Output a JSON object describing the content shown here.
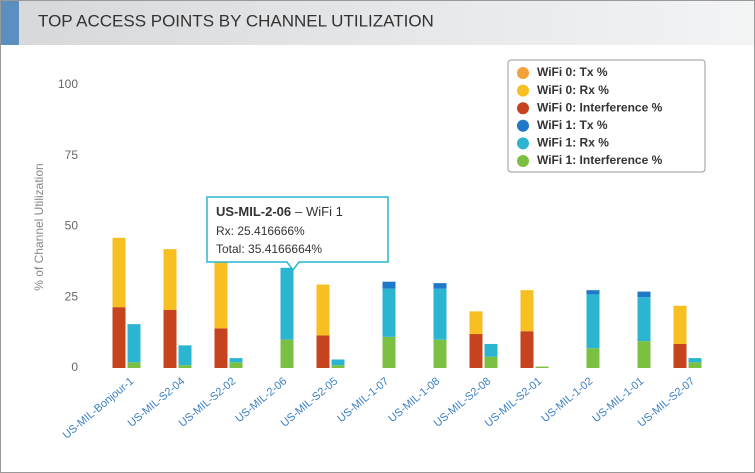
{
  "chart_data": {
    "type": "stacked_bar",
    "title": "TOP ACCESS POINTS BY CHANNEL UTILIZATION",
    "ylabel": "% of Channel Utilization",
    "categories": [
      "US-MIL-Bonjour-1",
      "US-MIL-S2-04",
      "US-MIL-S2-02",
      "US-MIL-2-06",
      "US-MIL-S2-05",
      "US-MIL-1-07",
      "US-MIL-1-08",
      "US-MIL-S2-08",
      "US-MIL-S2-01",
      "US-MIL-1-02",
      "US-MIL-1-01",
      "US-MIL-S2-07"
    ],
    "series": [
      {
        "name": "WiFi 0: Tx %",
        "stack": 0,
        "color": "#f2a03a",
        "values": [
          0,
          0,
          0,
          0,
          0,
          0,
          0,
          0,
          0,
          0,
          0,
          0
        ]
      },
      {
        "name": "WiFi 0: Rx %",
        "stack": 0,
        "color": "#f7bf22",
        "values": [
          24.5,
          21.5,
          26,
          0,
          18,
          0,
          0,
          8,
          14.5,
          0,
          0,
          13.5
        ]
      },
      {
        "name": "WiFi 0: Interference %",
        "stack": 0,
        "color": "#c5431f",
        "values": [
          21.5,
          20.5,
          14,
          0,
          11.5,
          0,
          0,
          12,
          13,
          0,
          0,
          8.5
        ]
      },
      {
        "name": "WiFi 1: Tx %",
        "stack": 1,
        "color": "#1f78c8",
        "values": [
          0,
          0,
          0,
          0,
          0,
          2.5,
          2,
          0,
          0,
          1.5,
          2,
          0
        ]
      },
      {
        "name": "WiFi 1: Rx %",
        "stack": 1,
        "color": "#2bb5d0",
        "values": [
          13.5,
          7,
          1.5,
          25.416666,
          2,
          17,
          18,
          4.5,
          0,
          19,
          15.5,
          1.5
        ]
      },
      {
        "name": "WiFi 1: Interference %",
        "stack": 1,
        "color": "#7cc043",
        "values": [
          2,
          1,
          2,
          10,
          1,
          11,
          10,
          4,
          0.5,
          7,
          9.5,
          2
        ]
      }
    ],
    "ylim": [
      0,
      100
    ],
    "yticks": [
      0,
      25,
      50,
      75,
      100
    ],
    "grid": false,
    "legend": "top-right",
    "tooltip": {
      "title": "US-MIL-2-06",
      "subtitle": "– WiFi 1",
      "lines": [
        "Rx: 25.416666%",
        "Total: 35.4166664%"
      ]
    }
  }
}
